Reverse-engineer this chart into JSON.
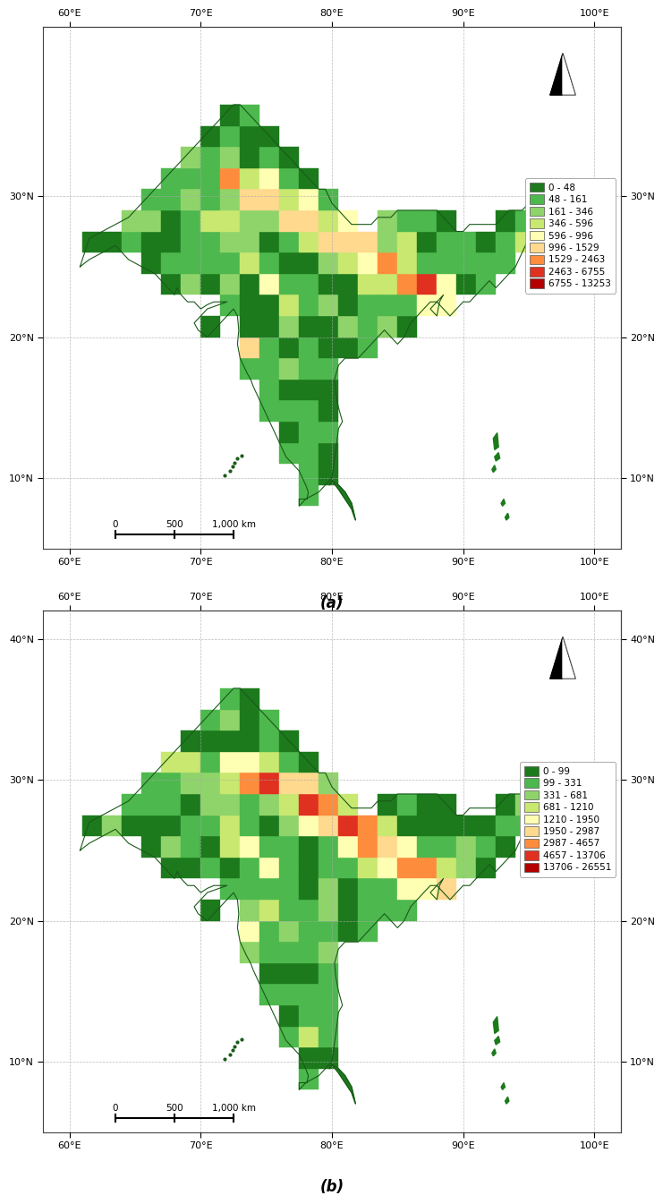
{
  "panel_a": {
    "title": "(a)",
    "legend_labels": [
      "0 - 48",
      "48 - 161",
      "161 - 346",
      "346 - 596",
      "596 - 996",
      "996 - 1529",
      "1529 - 2463",
      "2463 - 6755",
      "6755 - 13253"
    ],
    "legend_colors": [
      "#1c7a1c",
      "#4db84d",
      "#8fd46a",
      "#c8e870",
      "#ffffb3",
      "#fed98e",
      "#fd8d3c",
      "#e03020",
      "#b30000"
    ]
  },
  "panel_b": {
    "title": "(b)",
    "legend_labels": [
      "0 - 99",
      "99 - 331",
      "331 - 681",
      "681 - 1210",
      "1210 - 1950",
      "1950 - 2987",
      "2987 - 4657",
      "4657 - 13706",
      "13706 - 26551"
    ],
    "legend_colors": [
      "#1c7a1c",
      "#4db84d",
      "#8fd46a",
      "#c8e870",
      "#ffffb3",
      "#fed98e",
      "#fd8d3c",
      "#e03020",
      "#b30000"
    ]
  },
  "map_extent": [
    58,
    102,
    5,
    42
  ],
  "xticks": [
    60,
    70,
    80,
    90,
    100
  ],
  "yticks_a": [
    10,
    20,
    30
  ],
  "yticks_b": [
    10,
    20,
    30,
    40
  ],
  "background_color": "#ffffff",
  "ocean_color": "#ffffff",
  "land_base_color": "#1c7a1c",
  "grid_color": "#aaaaaa",
  "font_size": 8
}
